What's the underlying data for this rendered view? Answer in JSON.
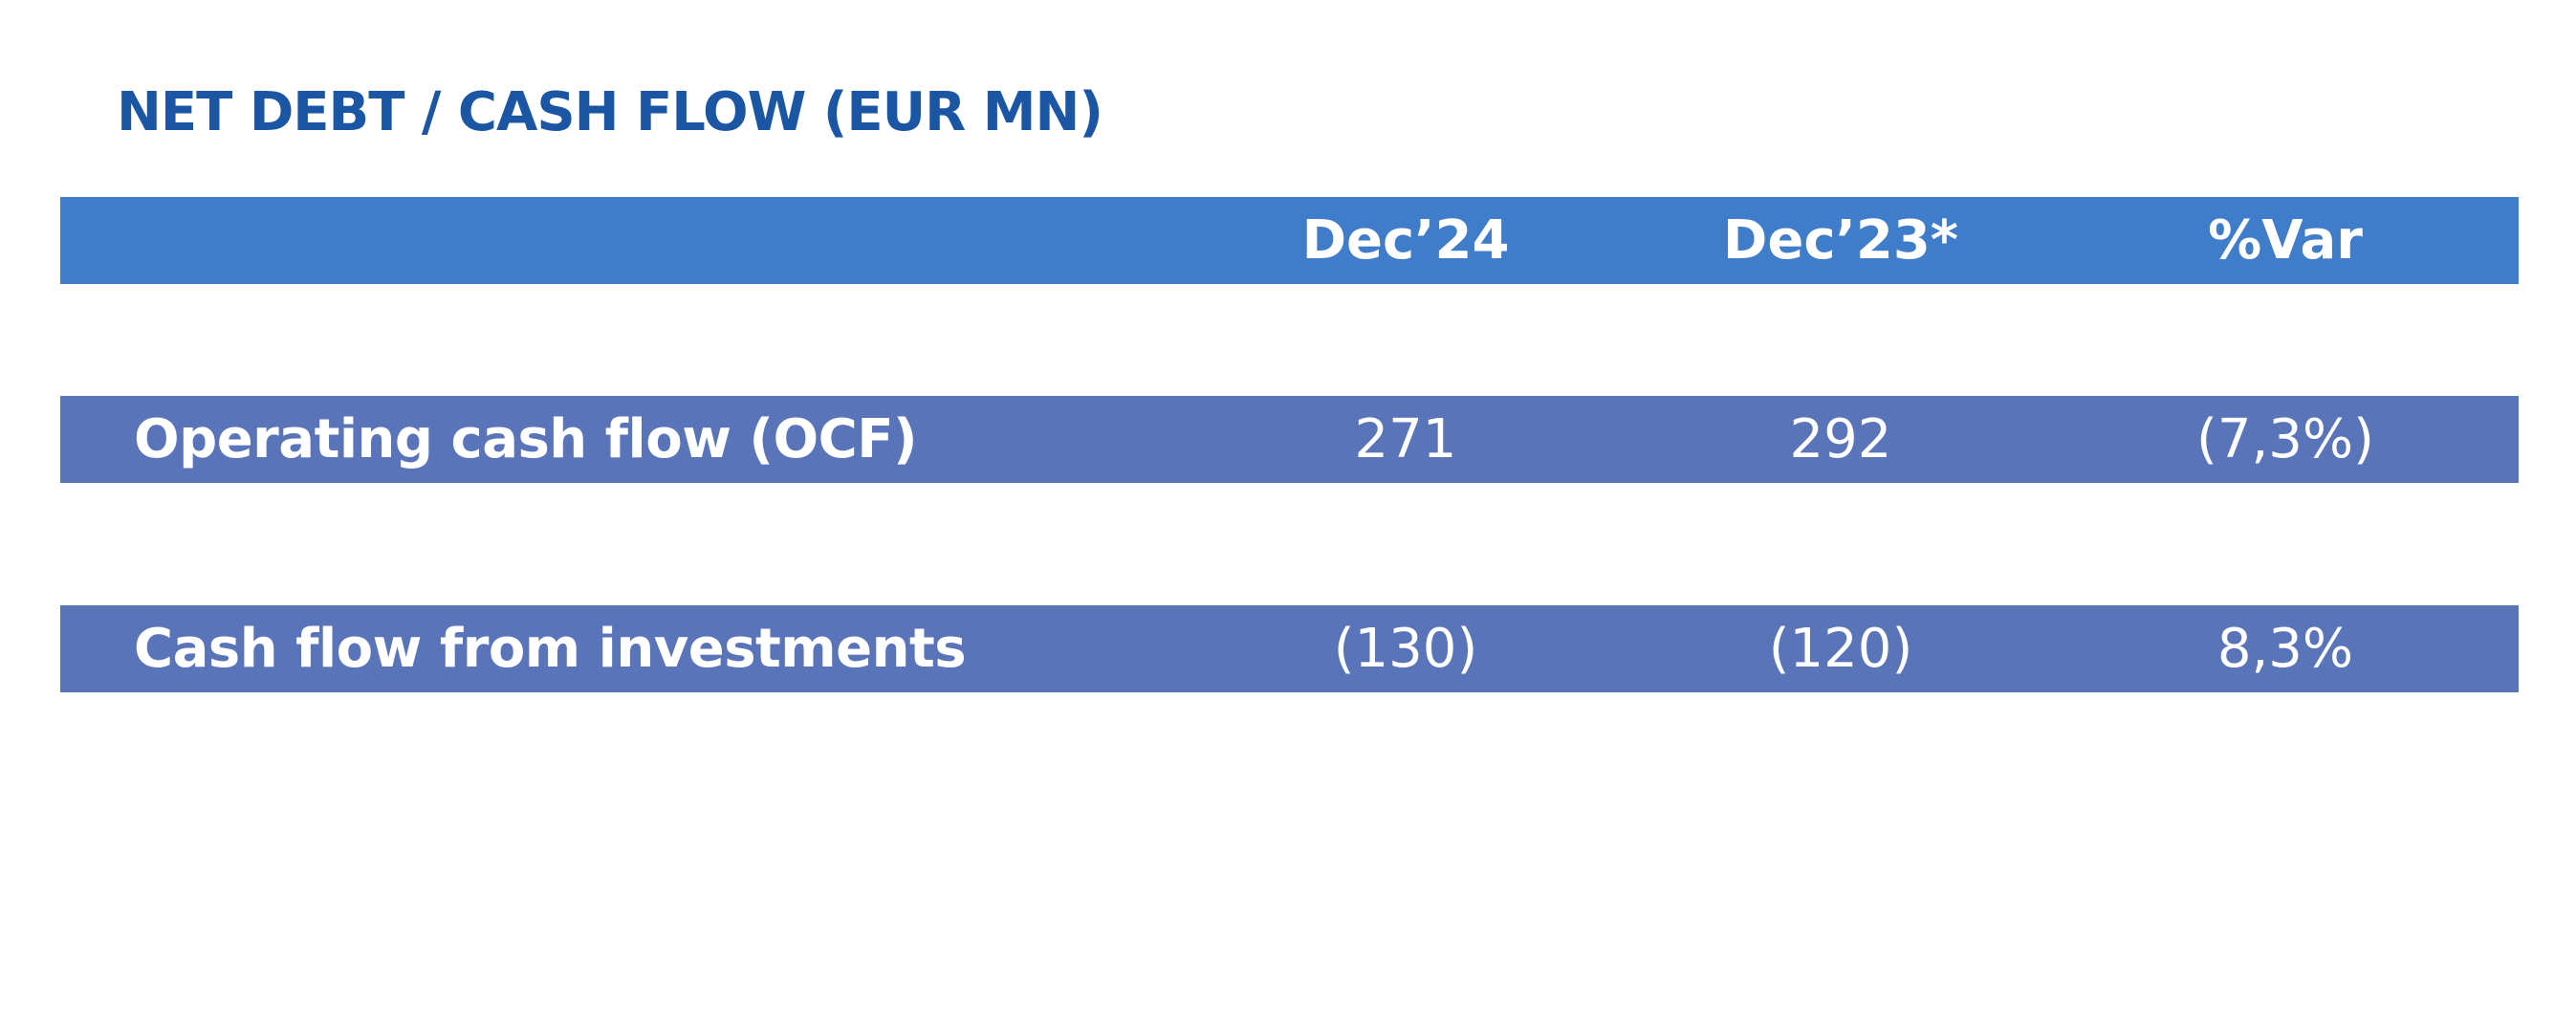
{
  "title": "NET DEBT / CASH FLOW (EUR MN)",
  "colors": {
    "title": "#1b56a4",
    "header_band": "#3f7cc9",
    "row_band": "#5a74b9",
    "text_on_band": "#ffffff"
  },
  "table": {
    "columns": [
      "Dec’24",
      "Dec’23*",
      "%Var"
    ],
    "rows": [
      {
        "label": "Operating cash flow (OCF)",
        "values": [
          "271",
          "292",
          "(7,3%)"
        ]
      },
      {
        "label": "Cash flow from investments",
        "values": [
          "(130)",
          "(120)",
          "8,3%"
        ]
      }
    ]
  }
}
